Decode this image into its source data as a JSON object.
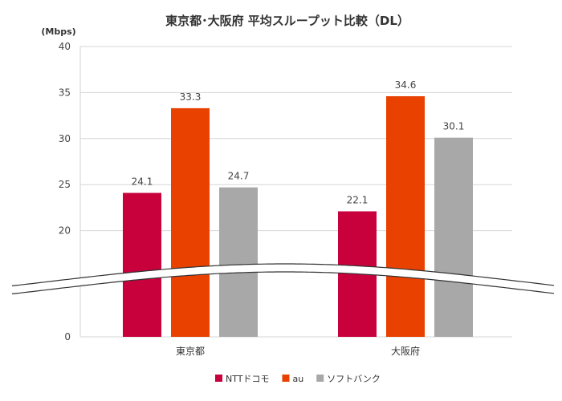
{
  "chart_data": {
    "type": "bar",
    "title": "東京都･大阪府 平均スループット比較（DL）",
    "unit_label": "(Mbps)",
    "categories": [
      "東京都",
      "大阪府"
    ],
    "series": [
      {
        "name": "NTTドコモ",
        "values": [
          24.1,
          22.1
        ],
        "color": "#c8003c"
      },
      {
        "name": "au",
        "values": [
          33.3,
          34.6
        ],
        "color": "#e84100"
      },
      {
        "name": "ソフトバンク",
        "values": [
          24.7,
          30.1
        ],
        "color": "#a8a8a8"
      }
    ],
    "y_ticks": [
      0,
      20,
      25,
      30,
      35,
      40
    ],
    "axis_break": [
      0,
      15
    ],
    "ylim": [
      0,
      40
    ],
    "grid": true,
    "legend_position": "bottom"
  }
}
